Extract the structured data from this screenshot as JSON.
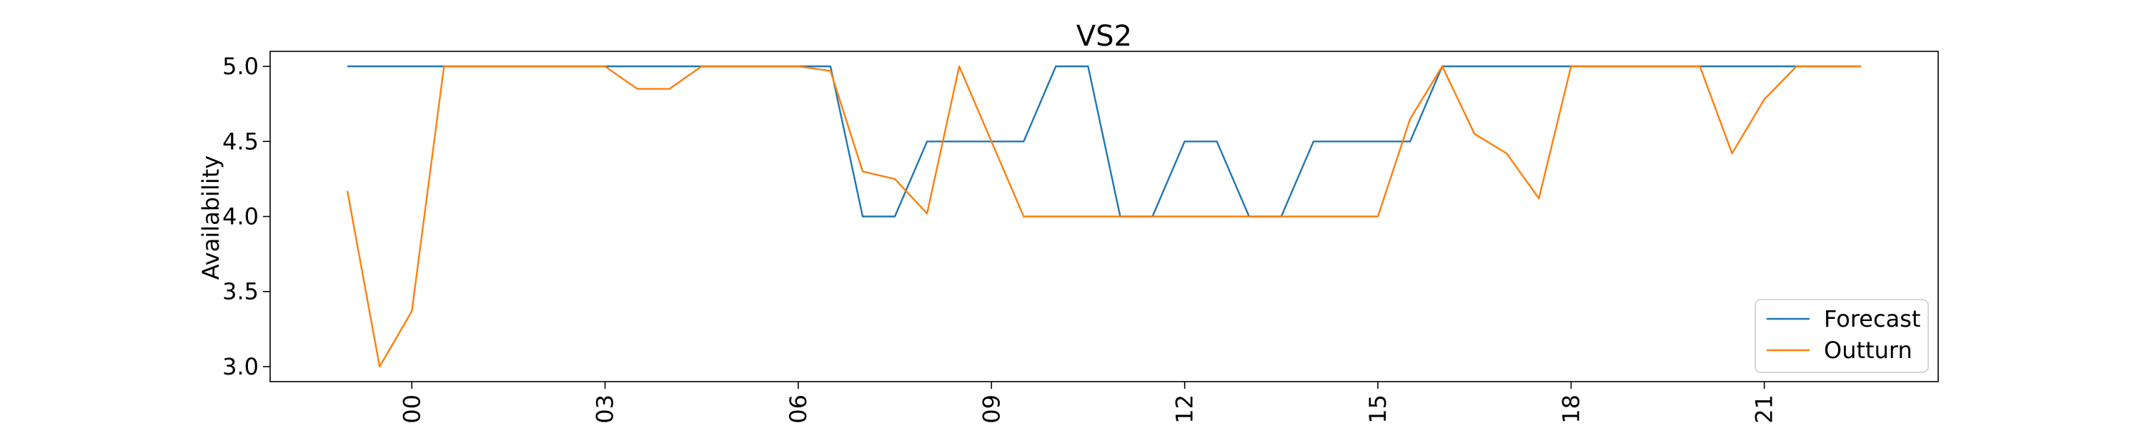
{
  "chart_data": {
    "type": "line",
    "title": "VS2",
    "xlabel": "",
    "ylabel": "Availability",
    "x": [
      -1,
      -0.5,
      0,
      0.5,
      1,
      1.5,
      2,
      2.5,
      3,
      3.5,
      4,
      4.5,
      5,
      5.5,
      6,
      6.5,
      7,
      7.5,
      8,
      8.5,
      9,
      9.5,
      10,
      10.5,
      11,
      11.5,
      12,
      12.5,
      13,
      13.5,
      14,
      14.5,
      15,
      15.5,
      16,
      16.5,
      17,
      17.5,
      18,
      18.5,
      19,
      19.5,
      20,
      20.5,
      21,
      21.5,
      22,
      22.5
    ],
    "xlim": [
      -2.2,
      23.7
    ],
    "ylim": [
      2.9,
      5.1
    ],
    "x_ticks": [
      0,
      3,
      6,
      9,
      12,
      15,
      18,
      21
    ],
    "x_tick_labels": [
      "3 00",
      "3 03",
      "3 06",
      "3 09",
      "3 12",
      "3 15",
      "3 18",
      "3 21"
    ],
    "y_ticks": [
      3.0,
      3.5,
      4.0,
      4.5,
      5.0
    ],
    "y_tick_labels": [
      "3.0",
      "3.5",
      "4.0",
      "4.5",
      "5.0"
    ],
    "grid": false,
    "legend_position": "bottom-right",
    "series": [
      {
        "name": "Forecast",
        "color": "#1f77b4",
        "values": [
          5,
          5,
          5,
          5,
          5,
          5,
          5,
          5,
          5,
          5,
          5,
          5,
          5,
          5,
          5,
          5,
          4,
          4,
          4.5,
          4.5,
          4.5,
          4.5,
          5,
          5,
          4,
          4,
          4.5,
          4.5,
          4,
          4,
          4.5,
          4.5,
          4.5,
          4.5,
          5,
          5,
          5,
          5,
          5,
          5,
          5,
          5,
          5,
          5,
          5,
          5,
          5,
          5
        ]
      },
      {
        "name": "Outturn",
        "color": "#ff7f0e",
        "values": [
          4.17,
          3.0,
          3.37,
          5,
          5,
          5,
          5,
          5,
          5,
          4.85,
          4.85,
          5,
          5,
          5,
          5,
          4.97,
          4.3,
          4.25,
          4.02,
          5,
          4.5,
          4.0,
          4.0,
          4.0,
          4.0,
          4.0,
          4.0,
          4.0,
          4.0,
          4.0,
          4.0,
          4.0,
          4.0,
          4.65,
          5,
          4.55,
          4.42,
          4.12,
          5,
          5,
          5,
          5,
          5,
          4.42,
          4.78,
          5,
          5,
          5
        ]
      }
    ]
  }
}
